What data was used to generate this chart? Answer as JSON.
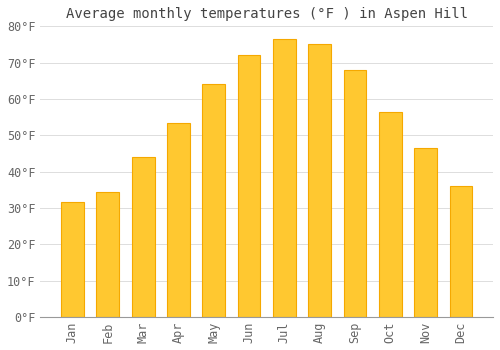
{
  "title": "Average monthly temperatures (°F ) in Aspen Hill",
  "months": [
    "Jan",
    "Feb",
    "Mar",
    "Apr",
    "May",
    "Jun",
    "Jul",
    "Aug",
    "Sep",
    "Oct",
    "Nov",
    "Dec"
  ],
  "values": [
    31.5,
    34.5,
    44,
    53.5,
    64,
    72,
    76.5,
    75,
    68,
    56.5,
    46.5,
    36
  ],
  "bar_color_center": "#FFC830",
  "bar_color_edge": "#F5A800",
  "background_color": "#FFFFFF",
  "plot_bg_color": "#FFFFFF",
  "grid_color": "#DDDDDD",
  "ylim": [
    0,
    80
  ],
  "yticks": [
    0,
    10,
    20,
    30,
    40,
    50,
    60,
    70,
    80
  ],
  "title_fontsize": 10,
  "tick_fontsize": 8.5,
  "tick_font_family": "monospace",
  "title_color": "#444444",
  "tick_color": "#666666"
}
